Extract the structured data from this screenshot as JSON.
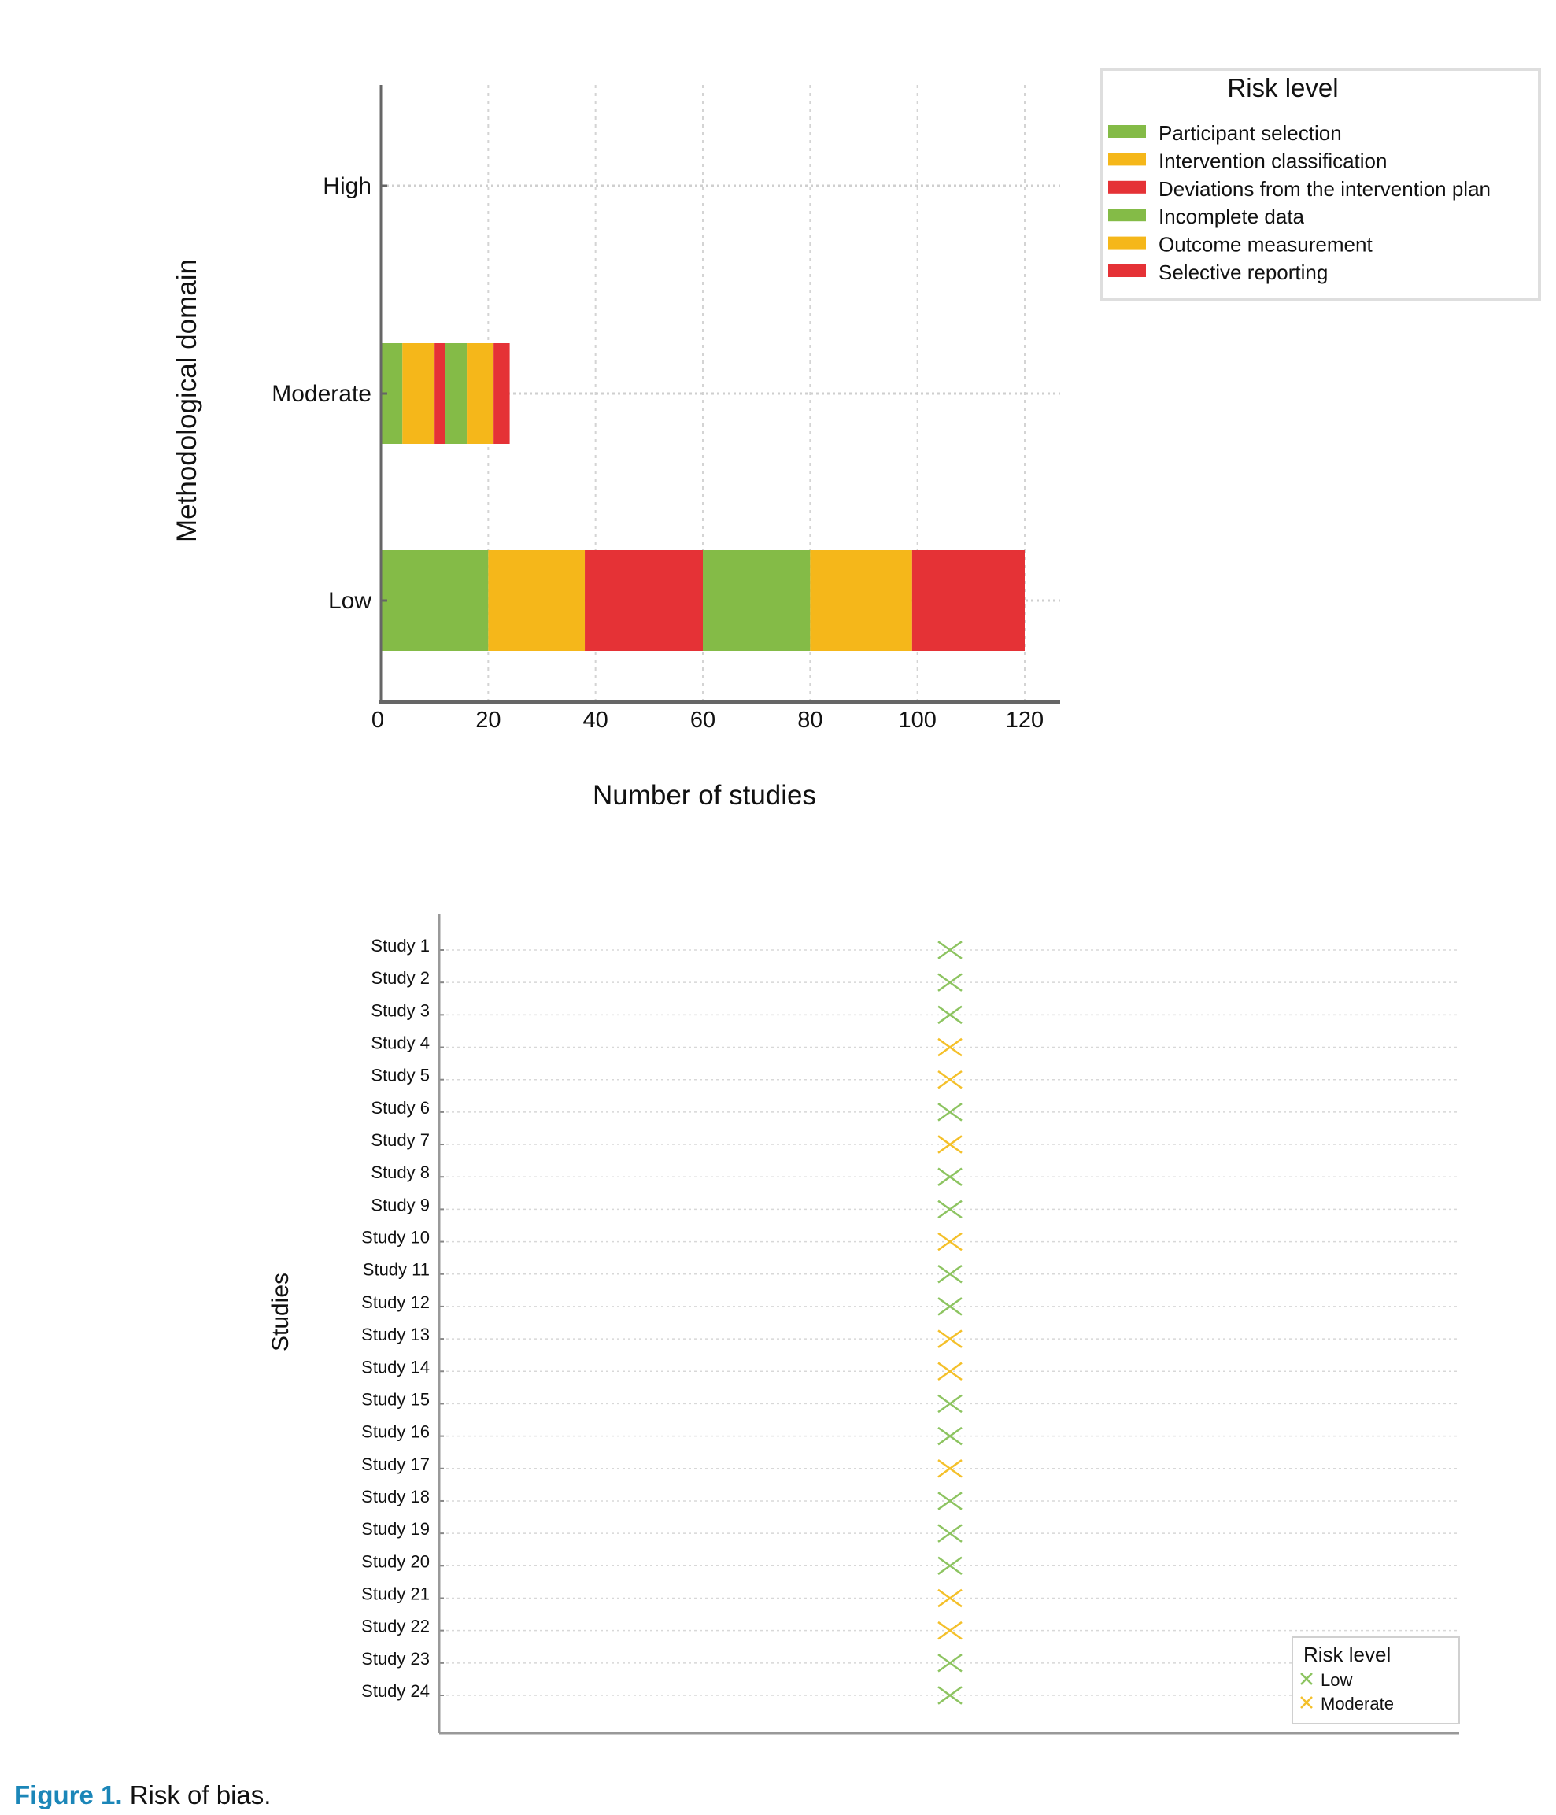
{
  "chart_data": [
    {
      "type": "bar",
      "orientation": "horizontal",
      "stacked": true,
      "xlabel": "Number of studies",
      "ylabel": "Methodological domain",
      "categories": [
        "High",
        "Moderate",
        "Low"
      ],
      "xlim": [
        0,
        125
      ],
      "xticks": [
        "0",
        "20",
        "40",
        "60",
        "80",
        "100",
        "120"
      ],
      "grid": true,
      "legend": {
        "title": "Risk level",
        "placement": "top-right"
      },
      "series": [
        {
          "name": "Participant selection",
          "color": "#84bb47",
          "values": [
            0,
            4,
            20
          ]
        },
        {
          "name": "Intervention classification",
          "color": "#f5b71a",
          "values": [
            0,
            6,
            18
          ]
        },
        {
          "name": "Deviations from the intervention plan",
          "color": "#e53236",
          "values": [
            0,
            2,
            22
          ]
        },
        {
          "name": "Incomplete data",
          "color": "#84bb47",
          "values": [
            0,
            4,
            20
          ]
        },
        {
          "name": "Outcome measurement",
          "color": "#f5b71a",
          "values": [
            0,
            5,
            19
          ]
        },
        {
          "name": "Selective reporting",
          "color": "#e53236",
          "values": [
            0,
            3,
            21
          ]
        }
      ]
    },
    {
      "type": "scatter",
      "ylabel": "Studies",
      "grid": true,
      "legend": {
        "title": "Risk level",
        "placement": "bottom-right",
        "entries": [
          {
            "name": "Low",
            "color": "#8dc461"
          },
          {
            "name": "Moderate",
            "color": "#f4c02a"
          }
        ]
      },
      "studies": [
        "Study 1",
        "Study 2",
        "Study 3",
        "Study 4",
        "Study 5",
        "Study 6",
        "Study 7",
        "Study 8",
        "Study 9",
        "Study 10",
        "Study 11",
        "Study 12",
        "Study 13",
        "Study 14",
        "Study 15",
        "Study 16",
        "Study 17",
        "Study 18",
        "Study 19",
        "Study 20",
        "Study 21",
        "Study 22",
        "Study 23",
        "Study 24"
      ],
      "risk": [
        "Low",
        "Low",
        "Low",
        "Moderate",
        "Moderate",
        "Low",
        "Moderate",
        "Low",
        "Low",
        "Moderate",
        "Low",
        "Low",
        "Moderate",
        "Moderate",
        "Low",
        "Low",
        "Moderate",
        "Low",
        "Low",
        "Low",
        "Moderate",
        "Moderate",
        "Low",
        "Low"
      ]
    }
  ],
  "caption": {
    "label": "Figure 1.",
    "text": " Risk of bias."
  }
}
